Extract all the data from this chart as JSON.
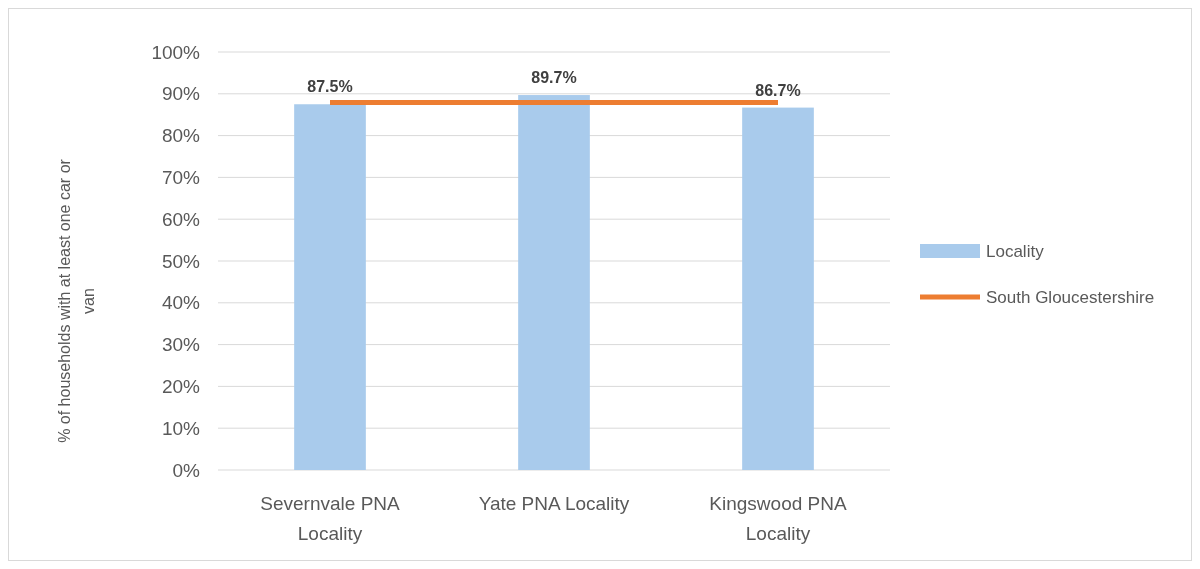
{
  "chart_data": {
    "type": "bar",
    "ylabel": "% of households with at least one car or van",
    "categories": [
      "Severnvale PNA Locality",
      "Yate PNA Locality",
      "Kingswood PNA Locality"
    ],
    "series": [
      {
        "name": "Locality",
        "color": "#a9cbec",
        "values": [
          87.5,
          89.7,
          86.7
        ],
        "value_labels": [
          "87.5%",
          "89.7%",
          "86.7%"
        ]
      },
      {
        "name": "South Gloucestershire",
        "type": "line",
        "color": "#ed7d31",
        "values": [
          87.9,
          87.9,
          87.9
        ]
      }
    ],
    "ylim": [
      0,
      100
    ],
    "yticks": [
      {
        "value": 0,
        "label": "0%"
      },
      {
        "value": 10,
        "label": "10%"
      },
      {
        "value": 20,
        "label": "20%"
      },
      {
        "value": 30,
        "label": "30%"
      },
      {
        "value": 40,
        "label": "40%"
      },
      {
        "value": 50,
        "label": "50%"
      },
      {
        "value": 60,
        "label": "60%"
      },
      {
        "value": 70,
        "label": "70%"
      },
      {
        "value": 80,
        "label": "80%"
      },
      {
        "value": 90,
        "label": "90%"
      },
      {
        "value": 100,
        "label": "100%"
      }
    ],
    "grid": "y",
    "legend": "right",
    "marker": "none",
    "line_style": "solid"
  }
}
